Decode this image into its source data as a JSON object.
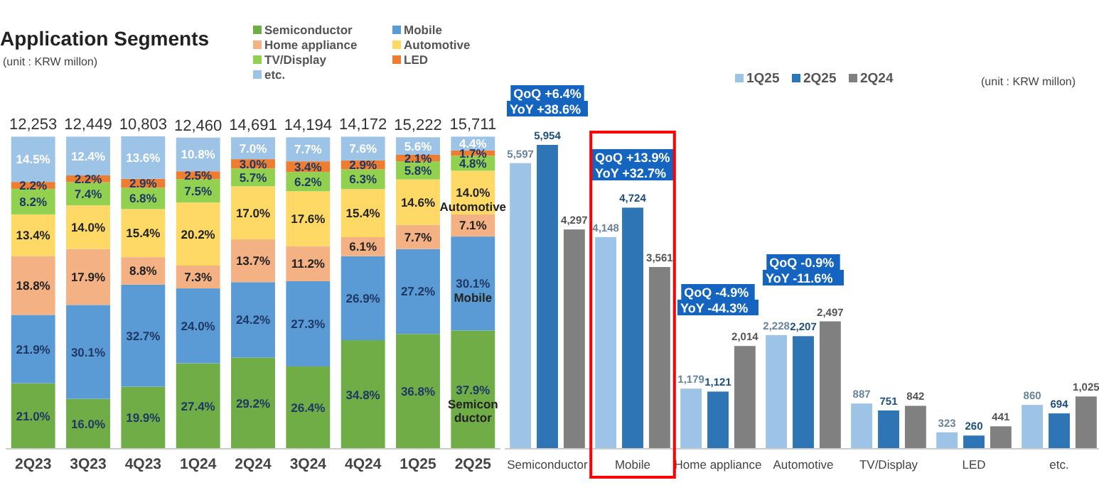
{
  "chart_data": [
    {
      "type": "bar",
      "title": "Application Segments",
      "subtitle": "(unit : KRW millon)",
      "stacked": true,
      "legend": "top",
      "categories": [
        "2Q23",
        "3Q23",
        "4Q23",
        "1Q24",
        "2Q24",
        "3Q24",
        "4Q24",
        "1Q25",
        "2Q25"
      ],
      "series": [
        {
          "name": "Semiconductor",
          "color": "#70ad47",
          "values": [
            21.0,
            16.0,
            19.9,
            27.4,
            29.2,
            26.4,
            34.8,
            36.8,
            37.9
          ],
          "value_labels": [
            "21.0%",
            "16.0%",
            "19.9%",
            "27.4%",
            "29.2%",
            "26.4%",
            "34.8%",
            "36.8%",
            "37.9%"
          ]
        },
        {
          "name": "Mobile",
          "color": "#5b9bd5",
          "values": [
            21.9,
            30.1,
            32.7,
            24.0,
            24.2,
            27.3,
            26.9,
            27.2,
            30.1
          ],
          "value_labels": [
            "21.9%",
            "30.1%",
            "32.7%",
            "24.0%",
            "24.2%",
            "27.3%",
            "26.9%",
            "27.2%",
            "30.1%"
          ]
        },
        {
          "name": "Home appliance",
          "color": "#f4b183",
          "values": [
            18.8,
            17.9,
            8.8,
            7.3,
            13.7,
            11.2,
            6.1,
            7.7,
            7.1
          ],
          "value_labels": [
            "18.8%",
            "17.9%",
            "8.8%",
            "7.3%",
            "13.7%",
            "11.2%",
            "6.1%",
            "7.7%",
            "7.1%"
          ]
        },
        {
          "name": "Automotive",
          "color": "#ffd966",
          "values": [
            13.4,
            14.0,
            15.4,
            20.2,
            17.0,
            17.6,
            15.4,
            14.6,
            14.0
          ],
          "value_labels": [
            "13.4%",
            "14.0%",
            "15.4%",
            "20.2%",
            "17.0%",
            "17.6%",
            "15.4%",
            "14.6%",
            "14.0%"
          ]
        },
        {
          "name": "TV/Display",
          "color": "#92d050",
          "values": [
            8.2,
            7.4,
            6.8,
            7.5,
            5.7,
            6.2,
            6.3,
            5.8,
            4.8
          ],
          "value_labels": [
            "8.2%",
            "7.4%",
            "6.8%",
            "7.5%",
            "5.7%",
            "6.2%",
            "6.3%",
            "5.8%",
            "4.8%"
          ]
        },
        {
          "name": "LED",
          "color": "#ed7d31",
          "values": [
            2.2,
            2.2,
            2.9,
            2.5,
            3.0,
            3.4,
            2.9,
            2.1,
            1.7
          ],
          "value_labels": [
            "2.2%",
            "2.2%",
            "2.9%",
            "2.5%",
            "3.0%",
            "3.4%",
            "2.9%",
            "2.1%",
            "1.7%"
          ]
        },
        {
          "name": "etc.",
          "color": "#9dc3e6",
          "values": [
            14.5,
            12.4,
            13.6,
            10.8,
            7.0,
            7.7,
            7.6,
            5.6,
            4.4
          ],
          "value_labels": [
            "14.5%",
            "12.4%",
            "13.6%",
            "10.8%",
            "7.0%",
            "7.7%",
            "7.6%",
            "5.6%",
            "4.4%"
          ]
        }
      ],
      "annotations": [
        "12,253",
        "12,449",
        "10,803",
        "12,460",
        "14,691",
        "14,194",
        "14,172",
        "15,222",
        "15,711",
        "Automotive",
        "Mobile",
        "Semiconductor"
      ]
    },
    {
      "type": "bar",
      "subtitle": "(unit : KRW millon)",
      "legend": "top",
      "categories": [
        "Semiconductor",
        "Mobile",
        "Home appliance",
        "Automotive",
        "TV/Display",
        "LED",
        "etc."
      ],
      "series": [
        {
          "name": "1Q25",
          "color": "#9dc3e6",
          "values": [
            5597,
            4148,
            1179,
            2228,
            887,
            323,
            860
          ],
          "value_labels": [
            "5,597",
            "4,148",
            "1,179",
            "2,228",
            "887",
            "323",
            "860"
          ]
        },
        {
          "name": "2Q25",
          "color": "#2e75b6",
          "values": [
            5954,
            4724,
            1121,
            2207,
            751,
            260,
            694
          ],
          "value_labels": [
            "5,954",
            "4,724",
            "1,121",
            "2,207",
            "751",
            "260",
            "694"
          ]
        },
        {
          "name": "2Q24",
          "color": "#808080",
          "values": [
            4297,
            3561,
            2014,
            2497,
            842,
            441,
            1025
          ],
          "value_labels": [
            "4,297",
            "3,561",
            "2,014",
            "2,497",
            "842",
            "441",
            "1,025"
          ]
        }
      ],
      "annotations": [
        "QoQ +6.4%",
        "YoY +38.6%",
        "QoQ +13.9%",
        "YoY +32.7%",
        "QoQ -4.9%",
        "YoY -44.3%",
        "QoQ -0.9%",
        "YoY -11.6%"
      ]
    }
  ]
}
